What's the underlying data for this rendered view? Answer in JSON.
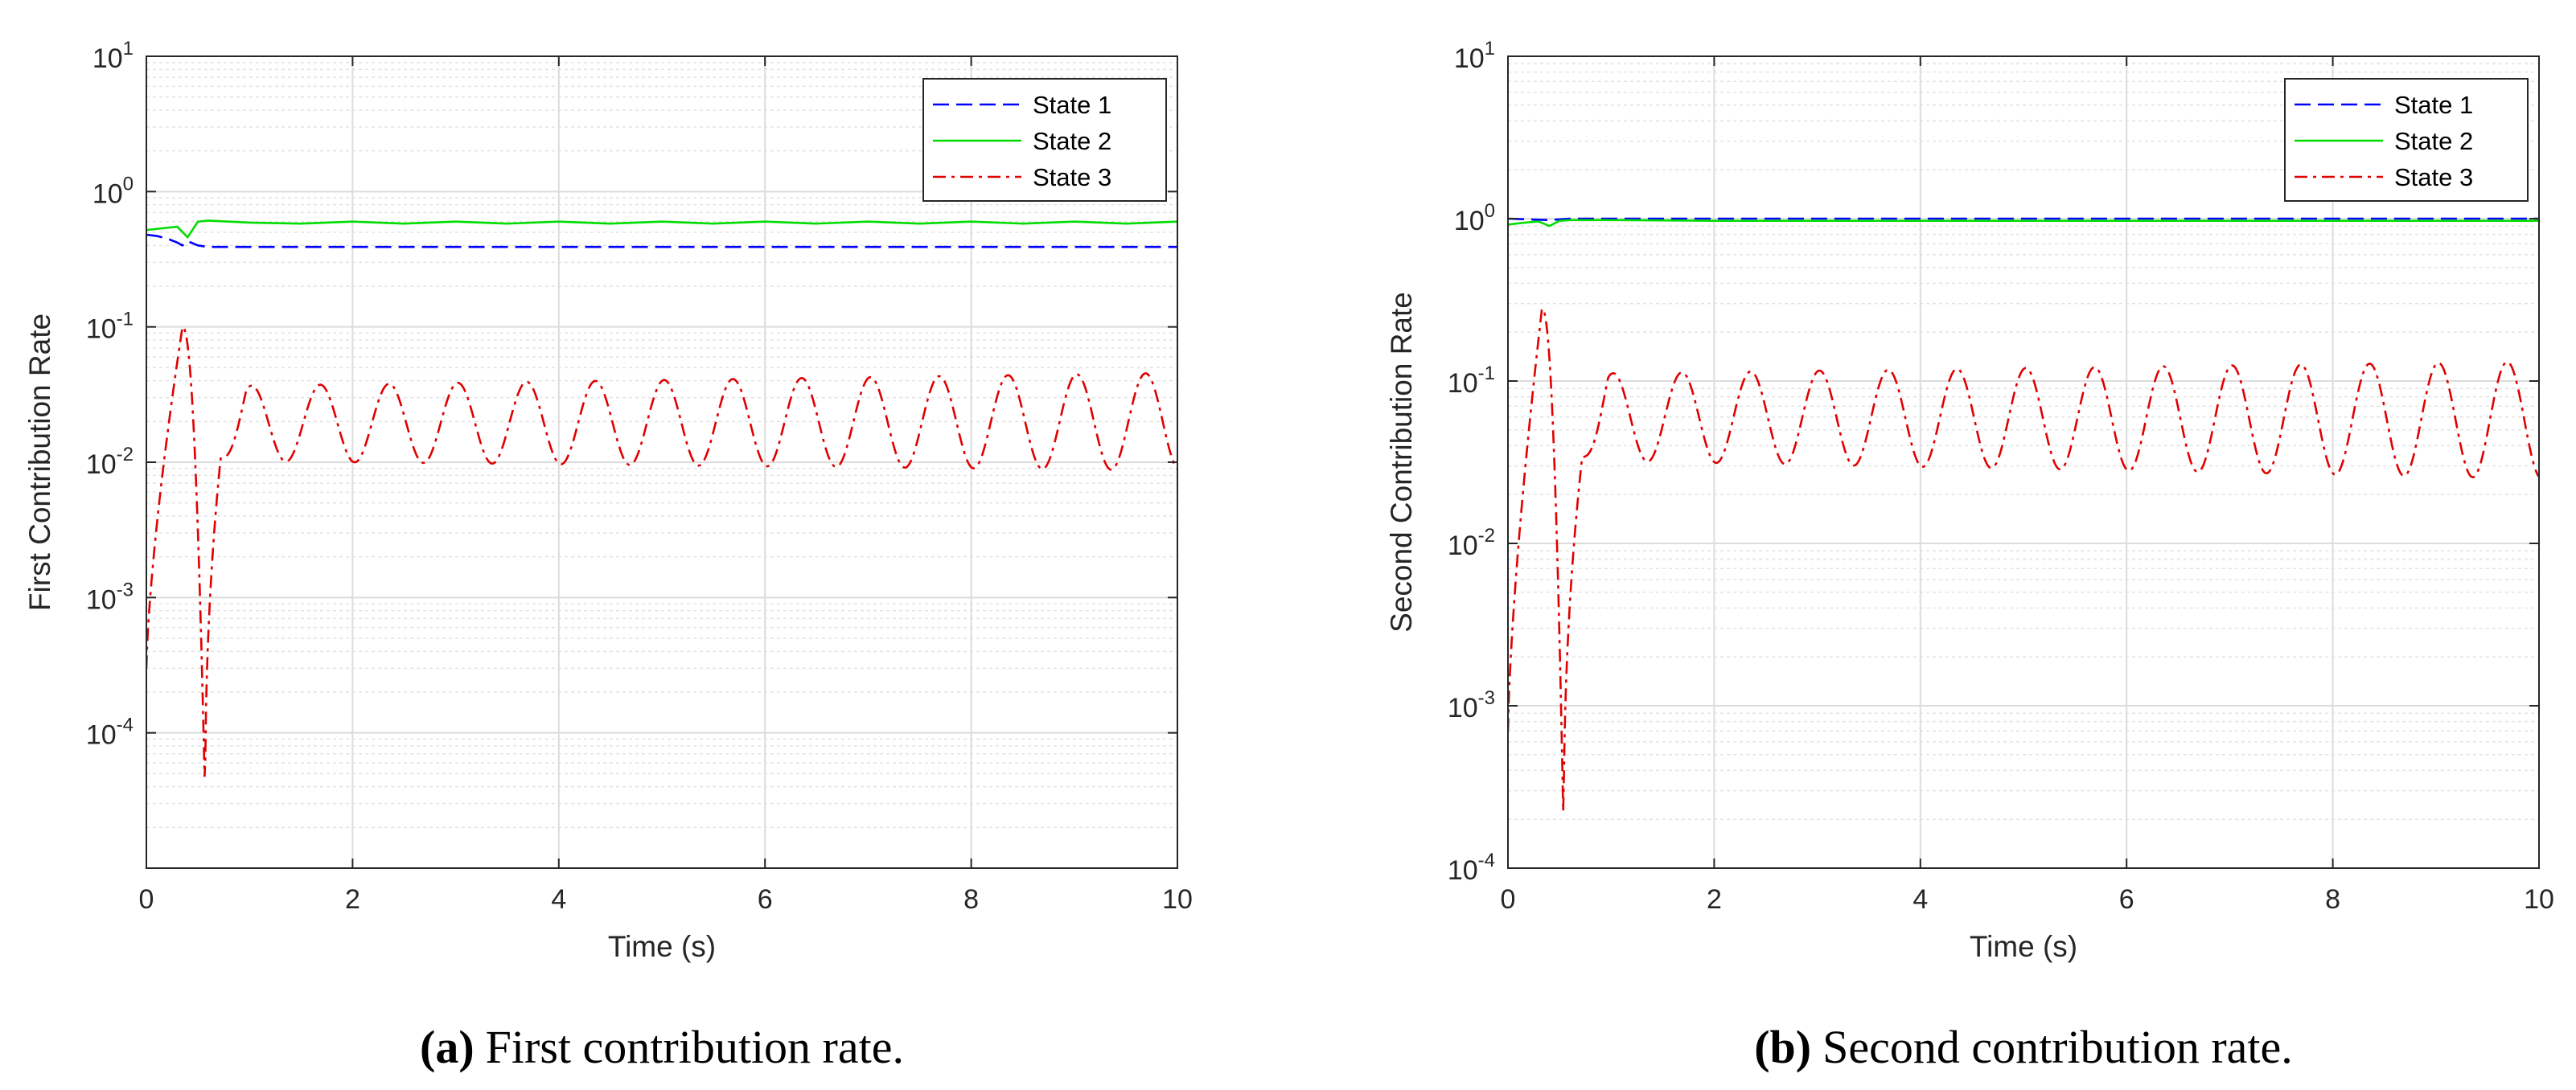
{
  "chart_data": [
    {
      "type": "line",
      "caption_letter": "a",
      "caption_text": "First contribution rate.",
      "xlabel": "Time (s)",
      "ylabel": "First Contribution Rate",
      "xlim": [
        0,
        10
      ],
      "ylim_log10": [
        -5,
        1
      ],
      "yscale": "log",
      "grid": true,
      "minor_grid": true,
      "legend": "top-right",
      "x_ticks": [
        "0",
        "2",
        "4",
        "6",
        "8",
        "10"
      ],
      "y_ticks": [
        {
          "base": "10",
          "exp": "-4",
          "log": -4
        },
        {
          "base": "10",
          "exp": "-3",
          "log": -3
        },
        {
          "base": "10",
          "exp": "-2",
          "log": -2
        },
        {
          "base": "10",
          "exp": "-1",
          "log": -1
        },
        {
          "base": "10",
          "exp": "0",
          "log": 0
        },
        {
          "base": "10",
          "exp": "1",
          "log": 1
        }
      ],
      "series": [
        {
          "name": "State 1",
          "color": "#0000ff",
          "dash": "dash",
          "x": [
            0,
            0.1,
            0.2,
            0.3,
            0.35,
            0.4,
            0.5,
            0.6,
            1,
            2,
            3,
            4,
            5,
            6,
            7,
            8,
            9,
            10
          ],
          "y": [
            0.48,
            0.47,
            0.45,
            0.42,
            0.4,
            0.43,
            0.4,
            0.39,
            0.39,
            0.39,
            0.39,
            0.39,
            0.39,
            0.39,
            0.39,
            0.39,
            0.39,
            0.39
          ]
        },
        {
          "name": "State 2",
          "color": "#00dd00",
          "dash": "solid",
          "x": [
            0,
            0.2,
            0.3,
            0.4,
            0.5,
            0.6,
            1,
            1.5,
            2,
            2.5,
            3,
            3.5,
            4,
            4.5,
            5,
            5.5,
            6,
            6.5,
            7,
            7.5,
            8,
            8.5,
            9,
            9.5,
            10
          ],
          "y": [
            0.52,
            0.54,
            0.55,
            0.46,
            0.6,
            0.61,
            0.59,
            0.58,
            0.6,
            0.58,
            0.6,
            0.58,
            0.6,
            0.58,
            0.6,
            0.58,
            0.6,
            0.58,
            0.6,
            0.58,
            0.6,
            0.58,
            0.6,
            0.58,
            0.6
          ]
        },
        {
          "name": "State 3",
          "color": "#e00000",
          "dash": "dashdot",
          "params": {
            "x0": 0,
            "x1": 10,
            "start": 0.0003,
            "peak": 0.1,
            "t_peak": 0.35,
            "t_dip": 0.57,
            "dip": 3e-05,
            "t_join": 0.72,
            "mid_log_start": -1.715,
            "mid_log_end": -1.7,
            "amp_start": 0.27,
            "amp_end": 0.36,
            "period": 0.667,
            "phase_t": 1.02
          }
        }
      ]
    },
    {
      "type": "line",
      "caption_letter": "b",
      "caption_text": "Second contribution rate.",
      "xlabel": "Time (s)",
      "ylabel": "Second Contribution Rate",
      "xlim": [
        0,
        10
      ],
      "ylim_log10": [
        -4,
        1
      ],
      "yscale": "log",
      "grid": true,
      "minor_grid": true,
      "legend": "top-right",
      "x_ticks": [
        "0",
        "2",
        "4",
        "6",
        "8",
        "10"
      ],
      "y_ticks": [
        {
          "base": "10",
          "exp": "-4",
          "log": -4
        },
        {
          "base": "10",
          "exp": "-3",
          "log": -3
        },
        {
          "base": "10",
          "exp": "-2",
          "log": -2
        },
        {
          "base": "10",
          "exp": "-1",
          "log": -1
        },
        {
          "base": "10",
          "exp": "0",
          "log": 0
        },
        {
          "base": "10",
          "exp": "1",
          "log": 1
        }
      ],
      "series": [
        {
          "name": "State 1",
          "color": "#0000ff",
          "dash": "dash",
          "x": [
            0,
            0.2,
            0.4,
            0.6,
            1,
            2,
            3,
            4,
            5,
            6,
            7,
            8,
            9,
            10
          ],
          "y": [
            1.0,
            0.99,
            0.98,
            1.0,
            1.0,
            1.0,
            1.0,
            1.0,
            1.0,
            1.0,
            1.0,
            1.0,
            1.0,
            1.0
          ]
        },
        {
          "name": "State 2",
          "color": "#00dd00",
          "dash": "solid",
          "x": [
            0,
            0.2,
            0.3,
            0.4,
            0.5,
            0.6,
            1,
            2,
            3,
            4,
            5,
            6,
            7,
            8,
            9,
            10
          ],
          "y": [
            0.92,
            0.95,
            0.96,
            0.9,
            0.97,
            0.98,
            0.98,
            0.97,
            0.97,
            0.97,
            0.97,
            0.97,
            0.97,
            0.97,
            0.97,
            0.97
          ]
        },
        {
          "name": "State 3",
          "color": "#e00000",
          "dash": "dashdot",
          "params": {
            "x0": 0,
            "x1": 10,
            "start": 0.0007,
            "peak": 0.28,
            "t_peak": 0.33,
            "t_dip": 0.54,
            "dip": 0.00016,
            "t_join": 0.72,
            "mid_log_start": -1.22,
            "mid_log_end": -1.24,
            "amp_start": 0.26,
            "amp_end": 0.36,
            "period": 0.667,
            "phase_t": 1.02
          }
        }
      ]
    }
  ]
}
